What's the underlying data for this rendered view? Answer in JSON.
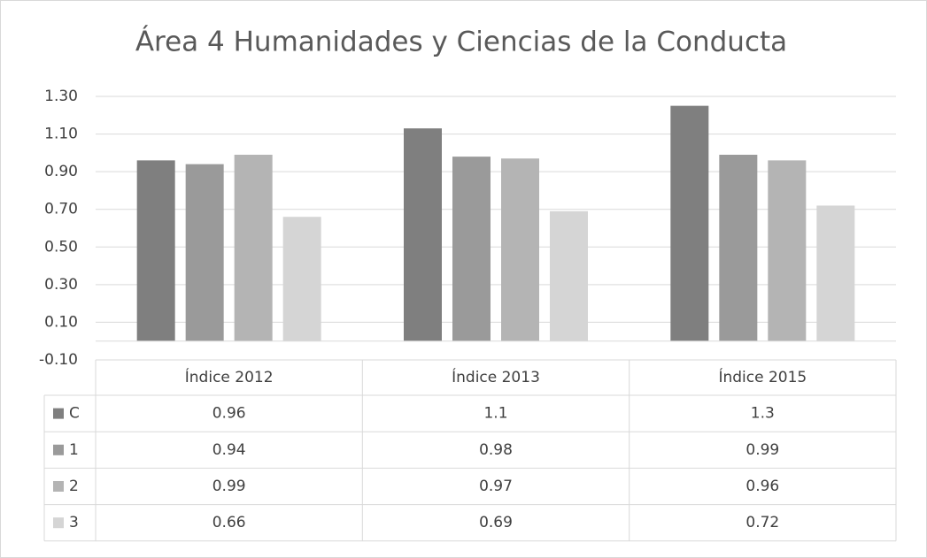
{
  "chart_data": {
    "type": "bar",
    "title": "Área 4 Humanidades y Ciencias de la Conducta",
    "categories": [
      "Índice 2012",
      "Índice 2013",
      "Índice 2015"
    ],
    "series": [
      {
        "name": "C",
        "color": "#7f7f7f",
        "values": [
          0.96,
          1.13,
          1.25
        ],
        "value_labels": [
          "0.96",
          "1.1",
          "1.3"
        ]
      },
      {
        "name": "1",
        "color": "#9a9a9a",
        "values": [
          0.94,
          0.98,
          0.99
        ]
      },
      {
        "name": "2",
        "color": "#b4b4b4",
        "values": [
          0.99,
          0.97,
          0.96
        ]
      },
      {
        "name": "3",
        "color": "#d5d5d5",
        "values": [
          0.66,
          0.69,
          0.72
        ]
      }
    ],
    "ylim": [
      -0.1,
      1.3
    ],
    "yticks": [
      {
        "value": -0.1,
        "label": "-0.10"
      },
      {
        "value": 0.1,
        "label": "0.10"
      },
      {
        "value": 0.3,
        "label": "0.30"
      },
      {
        "value": 0.5,
        "label": "0.50"
      },
      {
        "value": 0.7,
        "label": "0.70"
      },
      {
        "value": 0.9,
        "label": "0.90"
      },
      {
        "value": 1.1,
        "label": "1.10"
      },
      {
        "value": 1.3,
        "label": "1.30"
      }
    ],
    "grid": true,
    "data_table": true
  }
}
